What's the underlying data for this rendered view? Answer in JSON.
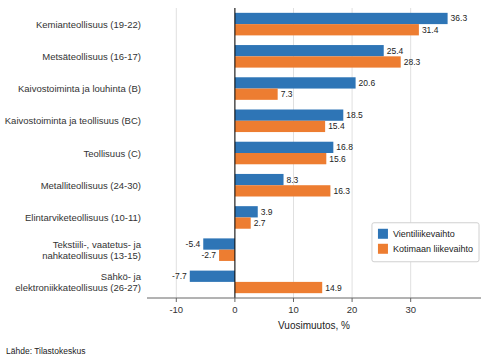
{
  "chart_data": {
    "type": "bar",
    "orientation": "horizontal",
    "categories": [
      "Kemianteollisuus (19-22)",
      "Metsäteollisuus (16-17)",
      "Kaivostoiminta ja louhinta (B)",
      "Kaivostoiminta ja teollisuus (BC)",
      "Teollisuus (C)",
      "Metalliteollisuus (24-30)",
      "Elintarviketeollisuus (10-11)",
      "Tekstiili-, vaatetus- ja\nnahkateollisuus (13-15)",
      "Sähkö- ja\nelektroniikkateollisuus (26-27)"
    ],
    "series": [
      {
        "name": "Vientiliikevaihto",
        "color": "#2E75B6",
        "values": [
          36.3,
          25.4,
          20.6,
          18.5,
          16.8,
          8.3,
          3.9,
          -5.4,
          -7.7
        ]
      },
      {
        "name": "Kotimaan liikevaihto",
        "color": "#ED7D31",
        "values": [
          31.4,
          28.3,
          7.3,
          15.4,
          15.6,
          16.3,
          2.7,
          -2.7,
          14.9
        ]
      }
    ],
    "x_label": "Vuosimuutos, %",
    "xlim": [
      -15,
      42
    ],
    "xticks": [
      -10,
      0,
      10,
      20,
      30
    ],
    "grid": true,
    "data_labels": true,
    "legend": "lower right",
    "annotations": [
      "Lähde: Tilastokeskus"
    ]
  }
}
